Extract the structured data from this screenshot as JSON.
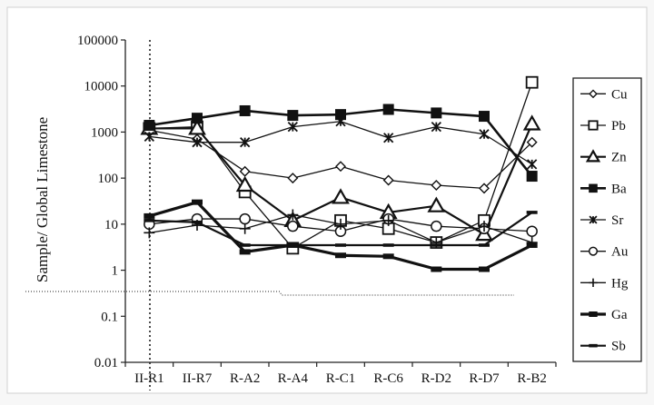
{
  "chart_data": {
    "type": "line",
    "ylabel": "Sample/ Global Limestone",
    "xlabel": "",
    "yscale": "log",
    "ylim": [
      0.01,
      100000
    ],
    "yticks": [
      "100000",
      "10000",
      "1000",
      "100",
      "10",
      "1",
      "0.1",
      "0.01"
    ],
    "categories": [
      "II-R1",
      "II-R7",
      "R-A2",
      "R-A4",
      "R-C1",
      "R-C6",
      "R-D2",
      "R-D7",
      "R-B2"
    ],
    "legend_position": "right",
    "grid": false,
    "series": [
      {
        "name": "Cu",
        "marker": "diamond",
        "values": [
          1100,
          700,
          140,
          100,
          180,
          90,
          70,
          60,
          600
        ]
      },
      {
        "name": "Pb",
        "marker": "square-open",
        "values": [
          1200,
          1300,
          50,
          3,
          12,
          8,
          4,
          12,
          12000
        ]
      },
      {
        "name": "Zn",
        "marker": "triangle-open",
        "values": [
          1200,
          1200,
          70,
          12,
          38,
          18,
          25,
          6,
          1500
        ]
      },
      {
        "name": "Ba",
        "marker": "square-filled",
        "values": [
          1400,
          2000,
          2900,
          2300,
          2400,
          3100,
          2600,
          2200,
          110
        ]
      },
      {
        "name": "Sr",
        "marker": "x-star",
        "values": [
          800,
          600,
          600,
          1300,
          1700,
          750,
          1300,
          900,
          200
        ]
      },
      {
        "name": "Au",
        "marker": "circle-open",
        "values": [
          10,
          13,
          13,
          9,
          7,
          13,
          9,
          8,
          7
        ]
      },
      {
        "name": "Hg",
        "marker": "plus",
        "values": [
          6.5,
          9.5,
          8,
          16,
          10,
          12,
          4,
          9,
          4
        ]
      },
      {
        "name": "Ga",
        "marker": "dash-thick",
        "values": [
          15,
          30,
          2.5,
          3.5,
          2.1,
          2,
          1.05,
          1.05,
          3.5
        ]
      },
      {
        "name": "Sb",
        "marker": "dash",
        "values": [
          12,
          11,
          3.5,
          3.5,
          3.5,
          3.5,
          3.5,
          3.5,
          18
        ]
      }
    ]
  }
}
